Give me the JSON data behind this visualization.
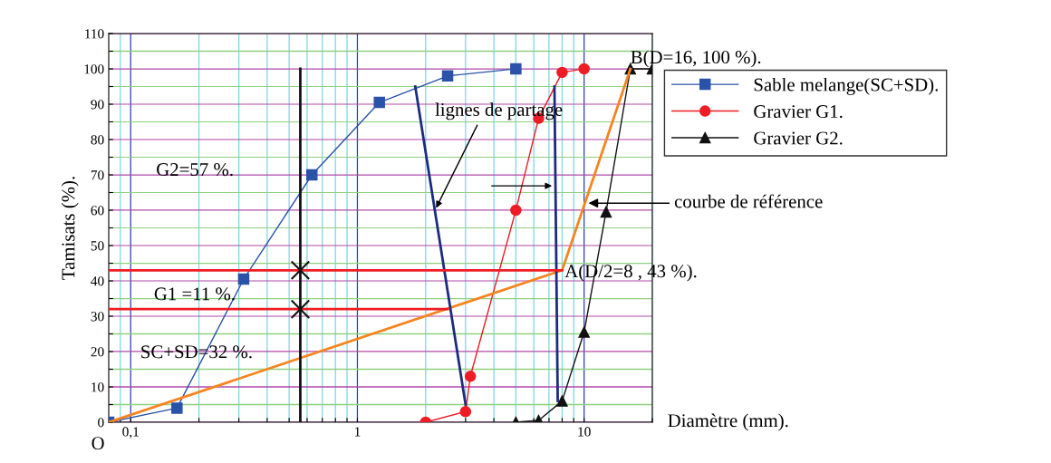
{
  "chart_data": {
    "type": "line",
    "xlabel": "Diamètre (mm).",
    "ylabel": "Tamisats (%).",
    "log": "x",
    "grid": true,
    "legend": "right",
    "xlim": [
      0.08,
      20
    ],
    "ylim": [
      0,
      110
    ],
    "xticks": [
      {
        "value": 0.09,
        "label": null
      },
      {
        "value": 0.1,
        "label": "0,1"
      },
      {
        "value": 0.2,
        "label": null
      },
      {
        "value": 0.3,
        "label": null
      },
      {
        "value": 0.4,
        "label": null
      },
      {
        "value": 0.5,
        "label": null
      },
      {
        "value": 0.6,
        "label": null
      },
      {
        "value": 0.7,
        "label": null
      },
      {
        "value": 0.8,
        "label": null
      },
      {
        "value": 0.9,
        "label": null
      },
      1,
      {
        "value": 2,
        "label": null
      },
      {
        "value": 3,
        "label": null
      },
      {
        "value": 4,
        "label": null
      },
      {
        "value": 5,
        "label": null
      },
      {
        "value": 6,
        "label": null
      },
      {
        "value": 7,
        "label": null
      },
      {
        "value": 8,
        "label": null
      },
      {
        "value": 9,
        "label": null
      },
      10,
      {
        "value": 20,
        "label": null
      }
    ],
    "yticks": [
      0,
      {
        "value": 5,
        "label": null
      },
      10,
      {
        "value": 15,
        "label": null
      },
      20,
      {
        "value": 25,
        "label": null
      },
      30,
      {
        "value": 35,
        "label": null
      },
      40,
      {
        "value": 45,
        "label": null
      },
      50,
      {
        "value": 55,
        "label": null
      },
      60,
      {
        "value": 65,
        "label": null
      },
      70,
      {
        "value": 75,
        "label": null
      },
      80,
      {
        "value": 85,
        "label": null
      },
      90,
      {
        "value": 95,
        "label": null
      },
      100,
      {
        "value": 105,
        "label": null
      },
      110
    ],
    "series": [
      {
        "name": "Sable melange(SC+SD).",
        "color": "#2a52a8",
        "marker": "square",
        "x": [
          0.08,
          0.16,
          0.315,
          0.63,
          1.25,
          2.5,
          5
        ],
        "values": [
          0,
          4,
          40.5,
          70,
          90.5,
          98,
          100
        ]
      },
      {
        "name": "Gravier G1.",
        "color": "#ee1c24",
        "marker": "circle",
        "x": [
          2,
          3,
          3.15,
          5,
          6.3,
          8,
          10
        ],
        "values": [
          0,
          3,
          13,
          60,
          86,
          99,
          100
        ]
      },
      {
        "name": "Gravier G2.",
        "color": "#111111",
        "marker": "triangle",
        "x": [
          5,
          6.3,
          8,
          10,
          12.5,
          16,
          20
        ],
        "values": [
          0,
          0.5,
          6,
          25.5,
          59.5,
          100,
          100
        ]
      },
      {
        "color": "#f7841f",
        "marker": "none",
        "x": [
          0.08,
          8,
          16
        ],
        "values": [
          0,
          43,
          100
        ]
      },
      {
        "color": "#1c2a80",
        "marker": "none",
        "x": [
          1.8,
          3
        ],
        "values": [
          95,
          5
        ]
      },
      {
        "color": "#1c2a80",
        "marker": "none",
        "x": [
          7.4,
          7.65
        ],
        "values": [
          95,
          6
        ]
      },
      {
        "color": "#ee1c24",
        "marker": "none",
        "x": [
          0.08,
          8
        ],
        "values": [
          43,
          43
        ]
      },
      {
        "color": "#ee1c24",
        "marker": "none",
        "x": [
          0.08,
          2.5
        ],
        "values": [
          32,
          32
        ]
      },
      {
        "color": "#111111",
        "marker": "none",
        "x": [
          0.56,
          0.56
        ],
        "values": [
          0,
          100
        ]
      },
      {
        "type": "scatter",
        "color": "#111111",
        "marker": "cross",
        "x": [
          0.56,
          0.56
        ],
        "values": [
          32,
          43
        ]
      }
    ],
    "annotations": [
      {
        "text": "O",
        "x": 0.08,
        "y": 0
      },
      "G2=57 %.",
      "G1 =11 %.",
      "SC+SD=32 %.",
      {
        "text": "lignes de partage",
        "x": 2.2,
        "y": 60
      },
      {
        "text": "courbe de référence",
        "x": 10.2,
        "y": 62
      },
      {
        "text": "A(D/2=8 , 43 %).",
        "x": 8,
        "y": 43
      },
      {
        "text": "B(D=16, 100 %).",
        "x": 16,
        "y": 100
      }
    ]
  }
}
